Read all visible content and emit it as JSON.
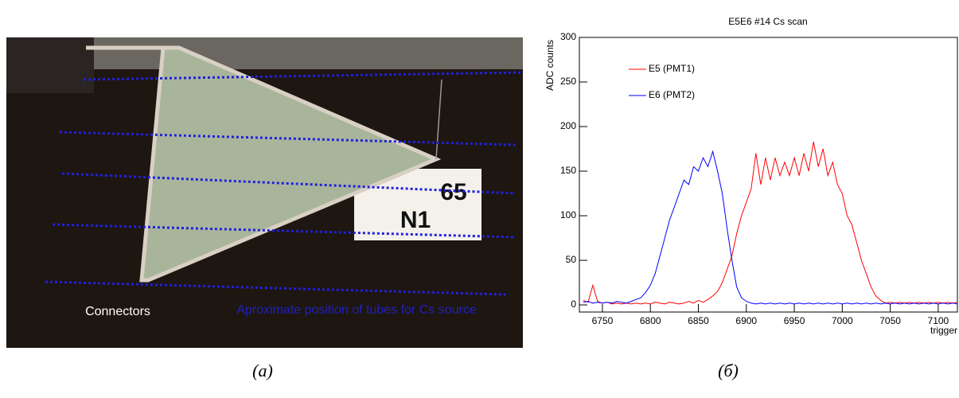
{
  "photo": {
    "connectors_label": "Connectors",
    "tubes_label": "Aproximate position of tubes for Cs source",
    "sign_number": "65",
    "sign_label": "N1"
  },
  "captions": [
    "(a)",
    "(б)"
  ],
  "chart_data": {
    "type": "line",
    "title": "E5E6 #14 Cs scan",
    "x_label": "trigger",
    "y_label": "ADC counts",
    "x": [
      6730,
      6735,
      6740,
      6745,
      6750,
      6755,
      6760,
      6765,
      6770,
      6775,
      6780,
      6785,
      6790,
      6795,
      6800,
      6805,
      6810,
      6815,
      6820,
      6825,
      6830,
      6835,
      6840,
      6845,
      6850,
      6855,
      6860,
      6865,
      6870,
      6875,
      6880,
      6885,
      6890,
      6895,
      6900,
      6905,
      6910,
      6915,
      6920,
      6925,
      6930,
      6935,
      6940,
      6945,
      6950,
      6955,
      6960,
      6965,
      6970,
      6975,
      6980,
      6985,
      6990,
      6995,
      7000,
      7005,
      7010,
      7015,
      7020,
      7025,
      7030,
      7035,
      7040,
      7045,
      7050,
      7055,
      7060,
      7065,
      7070,
      7075,
      7080,
      7085,
      7090,
      7095,
      7100,
      7105,
      7110,
      7115,
      7120
    ],
    "series": [
      {
        "name": "E5 (PMT1)",
        "color": "#ff0000",
        "values": [
          5,
          3,
          22,
          4,
          2,
          3,
          1,
          2,
          1,
          2,
          1,
          2,
          1,
          2,
          1,
          3,
          2,
          1,
          3,
          2,
          1,
          2,
          4,
          2,
          5,
          3,
          6,
          10,
          15,
          25,
          40,
          55,
          80,
          100,
          115,
          130,
          170,
          135,
          165,
          140,
          165,
          145,
          160,
          145,
          165,
          145,
          170,
          150,
          183,
          155,
          175,
          145,
          160,
          135,
          125,
          100,
          90,
          70,
          50,
          35,
          20,
          10,
          5,
          2,
          3,
          2,
          3,
          2,
          3,
          2,
          3,
          2,
          3,
          2,
          3,
          2,
          3,
          2,
          3
        ]
      },
      {
        "name": "E6 (PMT2)",
        "color": "#0000ff",
        "values": [
          3,
          4,
          2,
          3,
          2,
          3,
          2,
          4,
          3,
          2,
          4,
          6,
          8,
          14,
          22,
          35,
          55,
          75,
          95,
          110,
          125,
          140,
          135,
          155,
          150,
          165,
          155,
          172,
          150,
          125,
          85,
          50,
          20,
          8,
          4,
          2,
          1,
          2,
          1,
          2,
          1,
          2,
          1,
          2,
          1,
          2,
          1,
          2,
          1,
          2,
          1,
          2,
          1,
          2,
          1,
          2,
          1,
          2,
          1,
          2,
          1,
          2,
          1,
          2,
          1,
          2,
          1,
          2,
          1,
          2,
          1,
          2,
          1,
          2,
          1,
          2,
          1,
          2,
          1
        ]
      }
    ],
    "xlim": [
      6726,
      7120
    ],
    "ylim": [
      -8,
      300
    ],
    "xticks": [
      6750,
      6800,
      6850,
      6900,
      6950,
      7000,
      7050,
      7100
    ],
    "yticks": [
      0,
      50,
      100,
      150,
      200,
      250,
      300
    ]
  }
}
